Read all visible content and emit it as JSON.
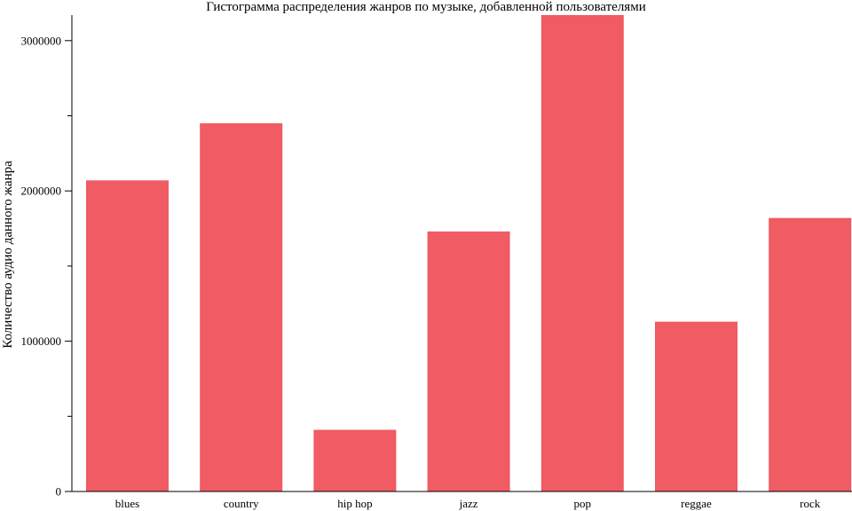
{
  "chart_data": {
    "type": "bar",
    "title": "Гистограмма распределения жанров по музыке, добавленной пользователями",
    "xlabel": "",
    "ylabel": "Количество аудио данного жанра",
    "categories": [
      "blues",
      "country",
      "hip hop",
      "jazz",
      "pop",
      "reggae",
      "rock"
    ],
    "values": [
      2070000,
      2450000,
      410000,
      1730000,
      3170000,
      1130000,
      1820000
    ],
    "ylim": [
      0,
      3170000
    ],
    "yticks_major": [
      0,
      1000000,
      2000000,
      3000000
    ],
    "yticks_major_labels": [
      "0",
      "1000000",
      "2000000",
      "3000000"
    ],
    "yticks_minor": [
      500000,
      1500000,
      2500000
    ],
    "bar_color": "#f05b64",
    "grid": false,
    "legend": "none"
  }
}
